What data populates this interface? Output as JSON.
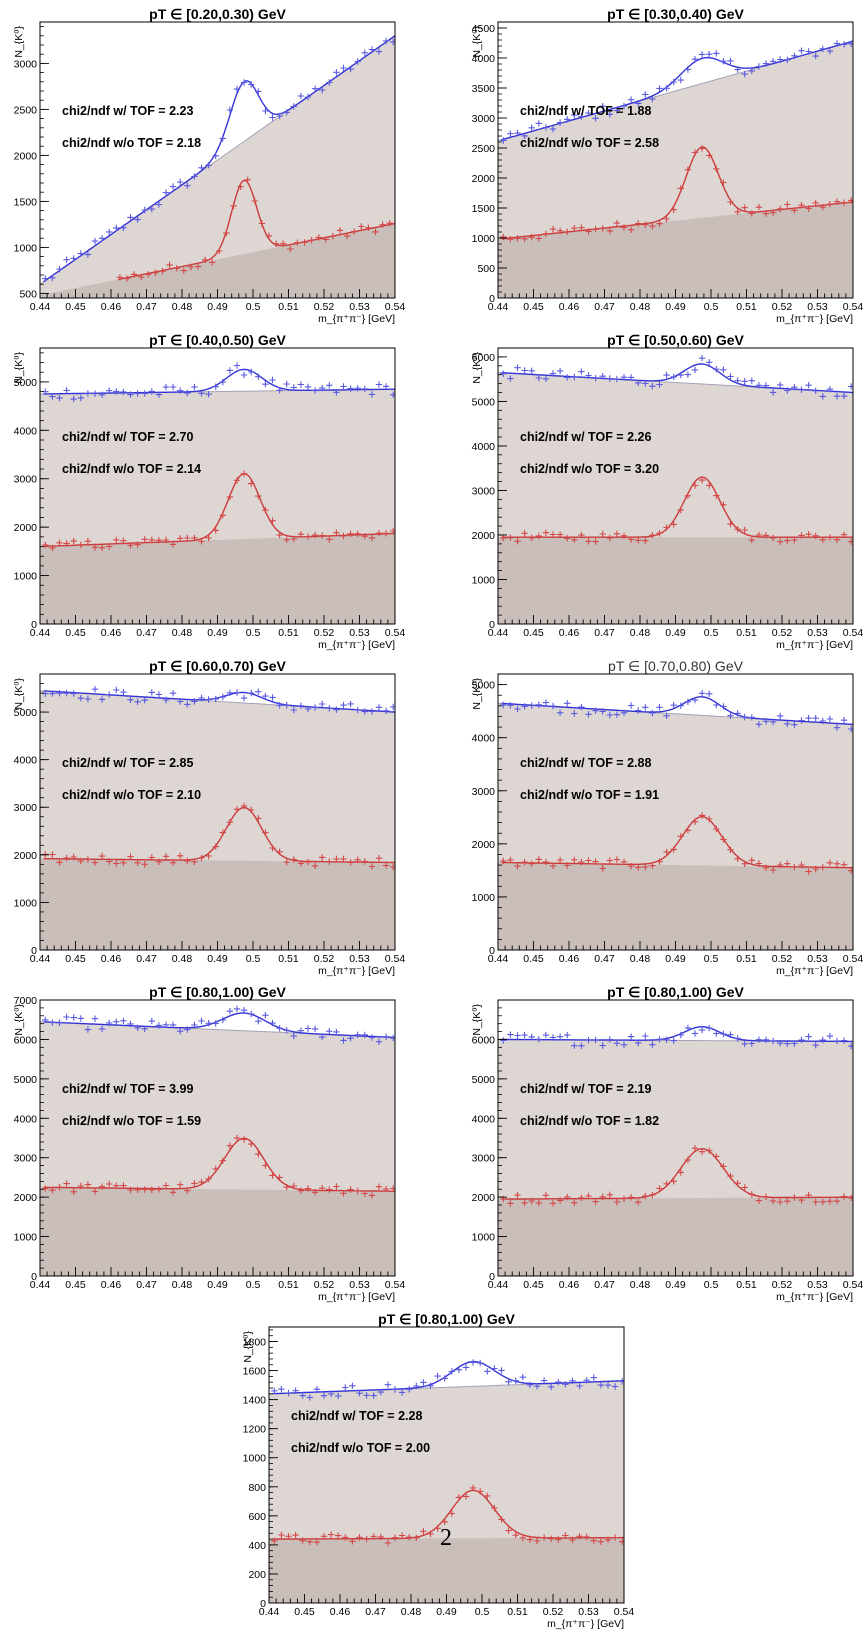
{
  "colors": {
    "data_blue": "#5a5ae0",
    "fit_blue": "#3434d6",
    "data_red": "#d44848",
    "fit_red": "#cc3b3b",
    "bg_light": "#ddd6d3",
    "bg_dark": "#c9beb9",
    "bg_line": "#a5a2b6",
    "frame": "#000000"
  },
  "overlay_glyph": "2",
  "chart_data": [
    {
      "type": "scatter",
      "title": "pT ∈ [0.20,0.30) GeV",
      "xlabel": "m_{π⁺π⁻} [GeV]",
      "ylabel": "N_{K⁰}",
      "xlim": [
        0.44,
        0.54
      ],
      "ylim": [
        450,
        3450
      ],
      "yticks": [
        500,
        1000,
        1500,
        2000,
        2500,
        3000
      ],
      "xticks": [
        "0.44",
        "0.45",
        "0.46",
        "0.47",
        "0.48",
        "0.49",
        "0.5",
        "0.51",
        "0.52",
        "0.53",
        "0.54"
      ],
      "annotations": [
        "chi2/ndf w/ TOF = 2.23",
        "chi2/ndf w/o TOF = 2.18"
      ],
      "series": [
        {
          "peak": "mid",
          "x_start": 0.441,
          "bkg_start": 600,
          "bkg_end": 3300,
          "amp": 650,
          "sigma": 0.004
        },
        {
          "peak": "low",
          "x_start": 0.462,
          "bkg_start": 480,
          "bkg_end": 1260,
          "amp": 800,
          "sigma": 0.0035
        }
      ]
    },
    {
      "type": "scatter",
      "title": "pT ∈ [0.30,0.40) GeV",
      "xlabel": "m_{π⁺π⁻} [GeV]",
      "ylabel": "N_{K⁰}",
      "xlim": [
        0.44,
        0.54
      ],
      "ylim": [
        0,
        4600
      ],
      "yticks": [
        0,
        500,
        1000,
        1500,
        2000,
        2500,
        3000,
        3500,
        4000,
        4500
      ],
      "xticks": [
        "0.44",
        "0.45",
        "0.46",
        "0.47",
        "0.48",
        "0.49",
        "0.5",
        "0.51",
        "0.52",
        "0.53",
        "0.54"
      ],
      "annotations": [
        "chi2/ndf w/ TOF = 1.88",
        "chi2/ndf w/o TOF = 2.58"
      ],
      "series": [
        {
          "peak": "mid",
          "x_start": 0.441,
          "bkg_start": 2620,
          "bkg_end": 4280,
          "amp": 420,
          "sigma": 0.006
        },
        {
          "peak": "low",
          "x_start": 0.441,
          "bkg_start": 980,
          "bkg_end": 1600,
          "amp": 1180,
          "sigma": 0.0045
        }
      ]
    },
    {
      "type": "scatter",
      "title": "pT ∈ [0.40,0.50) GeV",
      "xlabel": "m_{π⁺π⁻} [GeV]",
      "ylabel": "N_{K⁰}",
      "xlim": [
        0.44,
        0.54
      ],
      "ylim": [
        0,
        5700
      ],
      "yticks": [
        0,
        1000,
        2000,
        3000,
        4000,
        5000
      ],
      "xticks": [
        "0.44",
        "0.45",
        "0.46",
        "0.47",
        "0.48",
        "0.49",
        "0.5",
        "0.51",
        "0.52",
        "0.53",
        "0.54"
      ],
      "annotations": [
        "chi2/ndf w/ TOF = 2.70",
        "chi2/ndf w/o TOF = 2.14"
      ],
      "series": [
        {
          "peak": "mid",
          "x_start": 0.441,
          "bkg_start": 4750,
          "bkg_end": 4850,
          "amp": 450,
          "sigma": 0.005
        },
        {
          "peak": "low",
          "x_start": 0.441,
          "bkg_start": 1600,
          "bkg_end": 1870,
          "amp": 1350,
          "sigma": 0.0045
        }
      ]
    },
    {
      "type": "scatter",
      "title": "pT ∈ [0.50,0.60) GeV",
      "xlabel": "m_{π⁺π⁻} [GeV]",
      "ylabel": "N_{K⁰}",
      "xlim": [
        0.44,
        0.54
      ],
      "ylim": [
        0,
        6200
      ],
      "yticks": [
        0,
        1000,
        2000,
        3000,
        4000,
        5000,
        6000
      ],
      "xticks": [
        "0.44",
        "0.45",
        "0.46",
        "0.47",
        "0.48",
        "0.49",
        "0.5",
        "0.51",
        "0.52",
        "0.53",
        "0.54"
      ],
      "annotations": [
        "chi2/ndf w/ TOF = 2.26",
        "chi2/ndf w/o TOF = 3.20"
      ],
      "series": [
        {
          "peak": "mid",
          "x_start": 0.441,
          "bkg_start": 5650,
          "bkg_end": 5200,
          "amp": 450,
          "sigma": 0.005
        },
        {
          "peak": "low",
          "x_start": 0.441,
          "bkg_start": 1950,
          "bkg_end": 1950,
          "amp": 1350,
          "sigma": 0.005
        }
      ]
    },
    {
      "type": "scatter",
      "title": "pT ∈ [0.60,0.70) GeV",
      "xlabel": "m_{π⁺π⁻} [GeV]",
      "ylabel": "N_{K⁰}",
      "xlim": [
        0.44,
        0.54
      ],
      "ylim": [
        0,
        5800
      ],
      "yticks": [
        0,
        1000,
        2000,
        3000,
        4000,
        5000
      ],
      "xticks": [
        "0.44",
        "0.45",
        "0.46",
        "0.47",
        "0.48",
        "0.49",
        "0.5",
        "0.51",
        "0.52",
        "0.53",
        "0.54"
      ],
      "annotations": [
        "chi2/ndf w/ TOF = 2.85",
        "chi2/ndf w/o TOF = 2.10"
      ],
      "series": [
        {
          "peak": "mid",
          "x_start": 0.441,
          "bkg_start": 5450,
          "bkg_end": 5000,
          "amp": 220,
          "sigma": 0.005
        },
        {
          "peak": "low",
          "x_start": 0.441,
          "bkg_start": 1920,
          "bkg_end": 1840,
          "amp": 1120,
          "sigma": 0.005
        }
      ]
    },
    {
      "type": "scatter",
      "title": "pT ∈ [0.70,0.80) GeV",
      "xlabel": "m_{π⁺π⁻} [GeV]",
      "ylabel": "N_{K⁰}",
      "xlim": [
        0.44,
        0.54
      ],
      "ylim": [
        0,
        5200
      ],
      "yticks": [
        0,
        1000,
        2000,
        3000,
        4000,
        5000
      ],
      "xticks": [
        "0.44",
        "0.45",
        "0.46",
        "0.47",
        "0.48",
        "0.49",
        "0.5",
        "0.51",
        "0.52",
        "0.53",
        "0.54"
      ],
      "annotations": [
        "chi2/ndf w/ TOF = 2.88",
        "chi2/ndf w/o TOF = 1.91"
      ],
      "series": [
        {
          "peak": "mid",
          "x_start": 0.441,
          "bkg_start": 4650,
          "bkg_end": 4250,
          "amp": 350,
          "sigma": 0.005
        },
        {
          "peak": "low",
          "x_start": 0.441,
          "bkg_start": 1650,
          "bkg_end": 1550,
          "amp": 920,
          "sigma": 0.0055
        }
      ]
    },
    {
      "type": "scatter",
      "title": "pT ∈ [0.80,1.00) GeV",
      "xlabel": "m_{π⁺π⁻} [GeV]",
      "ylabel": "N_{K⁰}",
      "xlim": [
        0.44,
        0.54
      ],
      "ylim": [
        0,
        7000
      ],
      "yticks": [
        0,
        1000,
        2000,
        3000,
        4000,
        5000,
        6000,
        7000
      ],
      "xticks": [
        "0.44",
        "0.45",
        "0.46",
        "0.47",
        "0.48",
        "0.49",
        "0.5",
        "0.51",
        "0.52",
        "0.53",
        "0.54"
      ],
      "annotations": [
        "chi2/ndf w/ TOF = 3.99",
        "chi2/ndf w/o TOF = 1.59"
      ],
      "series": [
        {
          "peak": "mid",
          "x_start": 0.441,
          "bkg_start": 6450,
          "bkg_end": 6050,
          "amp": 450,
          "sigma": 0.006
        },
        {
          "peak": "low",
          "x_start": 0.441,
          "bkg_start": 2250,
          "bkg_end": 2150,
          "amp": 1300,
          "sigma": 0.0055
        }
      ]
    },
    {
      "type": "scatter",
      "title": "pT ∈ [0.80,1.00) GeV",
      "xlabel": "m_{π⁺π⁻} [GeV]",
      "ylabel": "N_{K⁰}",
      "xlim": [
        0.44,
        0.54
      ],
      "ylim": [
        0,
        7000
      ],
      "yticks": [
        0,
        1000,
        2000,
        3000,
        4000,
        5000,
        6000
      ],
      "xticks": [
        "0.44",
        "0.45",
        "0.46",
        "0.47",
        "0.48",
        "0.49",
        "0.5",
        "0.51",
        "0.52",
        "0.53",
        "0.54"
      ],
      "annotations": [
        "chi2/ndf w/ TOF = 2.19",
        "chi2/ndf w/o TOF = 1.82"
      ],
      "series": [
        {
          "peak": "mid",
          "x_start": 0.441,
          "bkg_start": 6000,
          "bkg_end": 5950,
          "amp": 350,
          "sigma": 0.005
        },
        {
          "peak": "low",
          "x_start": 0.441,
          "bkg_start": 1950,
          "bkg_end": 2000,
          "amp": 1250,
          "sigma": 0.006
        }
      ]
    },
    {
      "type": "scatter",
      "title": "pT ∈ [0.80,1.00) GeV",
      "xlabel": "m_{π⁺π⁻} [GeV]",
      "ylabel": "N_{K⁰}",
      "xlim": [
        0.44,
        0.54
      ],
      "ylim": [
        0,
        1900
      ],
      "yticks": [
        0,
        200,
        400,
        600,
        800,
        1000,
        1200,
        1400,
        1600,
        1800
      ],
      "xticks": [
        "0.44",
        "0.45",
        "0.46",
        "0.47",
        "0.48",
        "0.49",
        "0.5",
        "0.51",
        "0.52",
        "0.53",
        "0.54"
      ],
      "annotations": [
        "chi2/ndf w/ TOF = 2.28",
        "chi2/ndf w/o TOF = 2.00"
      ],
      "series": [
        {
          "peak": "mid",
          "x_start": 0.441,
          "bkg_start": 1440,
          "bkg_end": 1530,
          "amp": 170,
          "sigma": 0.006
        },
        {
          "peak": "low",
          "x_start": 0.441,
          "bkg_start": 440,
          "bkg_end": 450,
          "amp": 330,
          "sigma": 0.006
        }
      ]
    }
  ]
}
